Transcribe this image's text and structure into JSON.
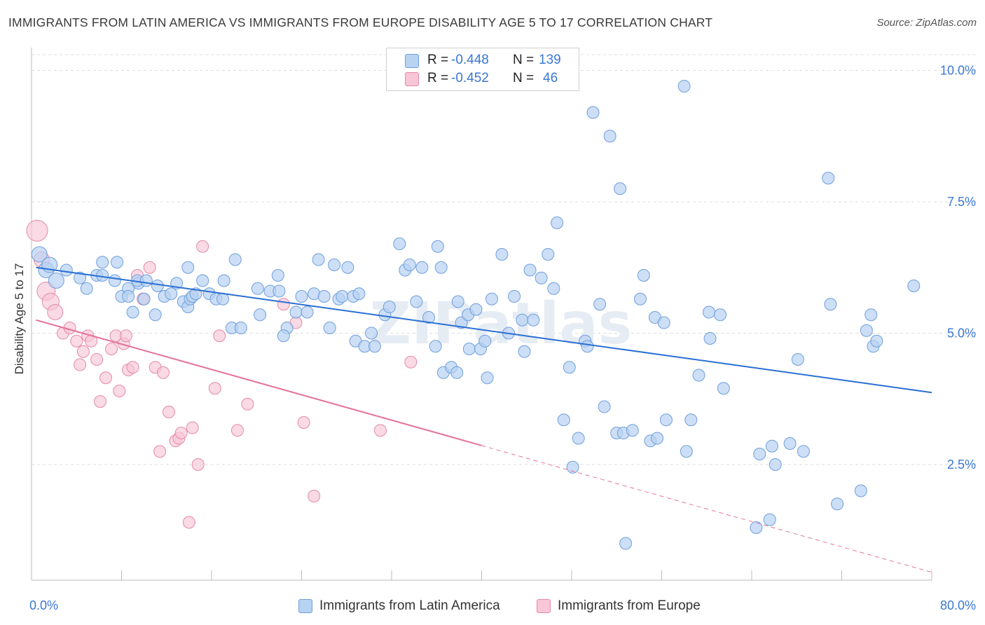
{
  "title": "IMMIGRANTS FROM LATIN AMERICA VS IMMIGRANTS FROM EUROPE DISABILITY AGE 5 TO 17 CORRELATION CHART",
  "source": "Source: ZipAtlas.com",
  "watermark": "ZIPatlas",
  "colors": {
    "blue_fill": "#b8d2f2",
    "blue_stroke": "#6e9fdc",
    "blue_line": "#2a6fd4",
    "pink_fill": "#f8c6d6",
    "pink_stroke": "#e48aa8",
    "pink_line": "#e4739b",
    "grid": "#dcdcdc",
    "tick_label": "#3a78d4"
  },
  "stats": {
    "rows": [
      {
        "r_label": "R =",
        "r_value": "-0.448",
        "n_label": "N =",
        "n_value": "139"
      },
      {
        "r_label": "R =",
        "r_value": "-0.452",
        "n_label": "N =",
        "n_value": "46"
      }
    ]
  },
  "legend": {
    "items": [
      {
        "label": "Immigrants from Latin America"
      },
      {
        "label": "Immigrants from Europe"
      }
    ]
  },
  "chart_data": {
    "type": "scatter",
    "title": "IMMIGRANTS FROM LATIN AMERICA VS IMMIGRANTS FROM EUROPE DISABILITY AGE 5 TO 17 CORRELATION CHART",
    "xlabel": "",
    "ylabel": "Disability Age 5 to 17",
    "xlim": [
      0,
      80
    ],
    "ylim": [
      0.3,
      10.3
    ],
    "x_tick_labels": [
      "0.0%",
      "80.0%"
    ],
    "y_ticks": [
      2.5,
      5.0,
      7.5,
      10.0
    ],
    "y_tick_labels": [
      "2.5%",
      "5.0%",
      "7.5%",
      "10.0%"
    ],
    "grid": "horizontal dashed",
    "legend_position": "bottom-center",
    "series": [
      {
        "name": "Immigrants from Latin America",
        "trend": {
          "x": [
            0.4,
            80.0
          ],
          "y": [
            6.25,
            3.87
          ],
          "dashed_from": null
        },
        "points": [
          [
            0.7,
            6.5
          ],
          [
            1.3,
            6.2
          ],
          [
            1.6,
            6.3
          ],
          [
            2.2,
            6.0
          ],
          [
            3.1,
            6.2
          ],
          [
            4.3,
            6.05
          ],
          [
            4.9,
            5.85
          ],
          [
            6.3,
            6.35
          ],
          [
            5.8,
            6.1
          ],
          [
            7.6,
            6.35
          ],
          [
            6.3,
            6.1
          ],
          [
            7.4,
            6.0
          ],
          [
            8.0,
            5.7
          ],
          [
            8.6,
            5.85
          ],
          [
            9.5,
            5.95
          ],
          [
            9.4,
            6.0
          ],
          [
            9.0,
            5.4
          ],
          [
            10.2,
            6.0
          ],
          [
            11.2,
            5.9
          ],
          [
            8.6,
            5.7
          ],
          [
            10.0,
            5.65
          ],
          [
            11.0,
            5.35
          ],
          [
            11.8,
            5.7
          ],
          [
            12.4,
            5.75
          ],
          [
            12.9,
            5.95
          ],
          [
            13.5,
            5.6
          ],
          [
            13.9,
            5.5
          ],
          [
            14.1,
            5.65
          ],
          [
            14.3,
            5.7
          ],
          [
            13.9,
            6.25
          ],
          [
            14.6,
            5.75
          ],
          [
            15.2,
            6.0
          ],
          [
            15.8,
            5.75
          ],
          [
            16.4,
            5.65
          ],
          [
            17.0,
            5.65
          ],
          [
            17.1,
            6.0
          ],
          [
            17.8,
            5.1
          ],
          [
            18.6,
            5.1
          ],
          [
            18.1,
            6.4
          ],
          [
            20.1,
            5.85
          ],
          [
            20.3,
            5.35
          ],
          [
            21.2,
            5.8
          ],
          [
            21.9,
            6.1
          ],
          [
            22.0,
            5.8
          ],
          [
            22.7,
            5.1
          ],
          [
            22.4,
            4.95
          ],
          [
            23.5,
            5.4
          ],
          [
            24.0,
            5.7
          ],
          [
            24.5,
            5.4
          ],
          [
            25.1,
            5.75
          ],
          [
            25.5,
            6.4
          ],
          [
            26.0,
            5.7
          ],
          [
            26.5,
            5.1
          ],
          [
            26.9,
            6.3
          ],
          [
            27.3,
            5.65
          ],
          [
            27.6,
            5.7
          ],
          [
            28.1,
            6.25
          ],
          [
            28.8,
            4.85
          ],
          [
            28.6,
            5.7
          ],
          [
            29.1,
            5.75
          ],
          [
            29.6,
            4.75
          ],
          [
            30.2,
            5.0
          ],
          [
            30.5,
            4.75
          ],
          [
            31.4,
            5.35
          ],
          [
            31.8,
            5.5
          ],
          [
            32.7,
            6.7
          ],
          [
            33.2,
            6.2
          ],
          [
            33.6,
            6.3
          ],
          [
            34.2,
            5.6
          ],
          [
            34.7,
            6.25
          ],
          [
            35.3,
            5.3
          ],
          [
            36.1,
            6.65
          ],
          [
            35.9,
            4.75
          ],
          [
            36.4,
            6.25
          ],
          [
            36.6,
            4.25
          ],
          [
            37.3,
            4.35
          ],
          [
            37.8,
            4.25
          ],
          [
            37.9,
            5.6
          ],
          [
            38.2,
            5.2
          ],
          [
            38.8,
            5.35
          ],
          [
            38.9,
            4.7
          ],
          [
            39.5,
            5.45
          ],
          [
            39.9,
            4.7
          ],
          [
            40.3,
            4.85
          ],
          [
            40.5,
            4.15
          ],
          [
            40.9,
            5.65
          ],
          [
            41.8,
            6.5
          ],
          [
            42.4,
            5.0
          ],
          [
            42.9,
            5.7
          ],
          [
            43.6,
            5.25
          ],
          [
            43.8,
            4.65
          ],
          [
            44.3,
            6.2
          ],
          [
            44.6,
            5.25
          ],
          [
            45.3,
            6.05
          ],
          [
            45.9,
            6.5
          ],
          [
            46.4,
            5.85
          ],
          [
            46.7,
            7.1
          ],
          [
            47.3,
            3.35
          ],
          [
            47.8,
            4.35
          ],
          [
            48.1,
            2.45
          ],
          [
            48.6,
            3.0
          ],
          [
            49.2,
            4.85
          ],
          [
            49.4,
            4.75
          ],
          [
            49.9,
            9.2
          ],
          [
            50.5,
            5.55
          ],
          [
            50.9,
            3.6
          ],
          [
            51.4,
            8.75
          ],
          [
            52.0,
            3.1
          ],
          [
            52.3,
            7.75
          ],
          [
            52.6,
            3.1
          ],
          [
            52.8,
            1.0
          ],
          [
            53.4,
            3.15
          ],
          [
            54.1,
            5.65
          ],
          [
            54.4,
            6.1
          ],
          [
            55.0,
            2.95
          ],
          [
            55.4,
            5.3
          ],
          [
            55.6,
            3.0
          ],
          [
            56.2,
            5.2
          ],
          [
            56.4,
            3.35
          ],
          [
            58.0,
            9.7
          ],
          [
            58.2,
            2.75
          ],
          [
            58.6,
            3.35
          ],
          [
            59.3,
            4.2
          ],
          [
            60.2,
            5.4
          ],
          [
            60.3,
            4.9
          ],
          [
            61.2,
            5.35
          ],
          [
            61.5,
            3.95
          ],
          [
            64.4,
            1.3
          ],
          [
            64.7,
            2.7
          ],
          [
            65.6,
            1.45
          ],
          [
            65.8,
            2.85
          ],
          [
            66.1,
            2.5
          ],
          [
            67.4,
            2.9
          ],
          [
            68.1,
            4.5
          ],
          [
            68.6,
            2.75
          ],
          [
            70.8,
            7.95
          ],
          [
            71.0,
            5.55
          ],
          [
            71.6,
            1.75
          ],
          [
            73.7,
            2.0
          ],
          [
            74.2,
            5.05
          ],
          [
            74.6,
            5.35
          ],
          [
            74.8,
            4.75
          ],
          [
            75.1,
            4.85
          ],
          [
            78.4,
            5.9
          ]
        ]
      },
      {
        "name": "Immigrants from Europe",
        "trend": {
          "x": [
            0.4,
            80.0
          ],
          "y": [
            5.25,
            0.45
          ],
          "dashed_from": 40.0
        },
        "points": [
          [
            0.5,
            6.95
          ],
          [
            0.9,
            6.4
          ],
          [
            1.3,
            5.8
          ],
          [
            1.7,
            5.6
          ],
          [
            2.1,
            5.4
          ],
          [
            2.8,
            5.0
          ],
          [
            3.4,
            5.1
          ],
          [
            4.0,
            4.85
          ],
          [
            4.3,
            4.4
          ],
          [
            4.6,
            4.65
          ],
          [
            5.0,
            4.95
          ],
          [
            5.3,
            4.85
          ],
          [
            5.8,
            4.5
          ],
          [
            6.1,
            3.7
          ],
          [
            6.6,
            4.15
          ],
          [
            7.1,
            4.7
          ],
          [
            7.5,
            4.95
          ],
          [
            7.8,
            3.9
          ],
          [
            8.2,
            4.8
          ],
          [
            8.4,
            4.95
          ],
          [
            8.6,
            4.3
          ],
          [
            9.0,
            4.35
          ],
          [
            9.4,
            6.1
          ],
          [
            9.9,
            5.65
          ],
          [
            10.5,
            6.25
          ],
          [
            11.0,
            4.35
          ],
          [
            11.4,
            2.75
          ],
          [
            11.7,
            4.25
          ],
          [
            12.2,
            3.5
          ],
          [
            12.8,
            2.95
          ],
          [
            13.1,
            3.0
          ],
          [
            13.3,
            3.1
          ],
          [
            14.0,
            1.4
          ],
          [
            14.3,
            3.2
          ],
          [
            14.8,
            2.5
          ],
          [
            15.2,
            6.65
          ],
          [
            16.3,
            3.95
          ],
          [
            16.7,
            4.95
          ],
          [
            18.3,
            3.15
          ],
          [
            19.2,
            3.65
          ],
          [
            22.4,
            5.55
          ],
          [
            23.5,
            5.2
          ],
          [
            24.2,
            3.3
          ],
          [
            25.1,
            1.9
          ],
          [
            31.0,
            3.15
          ],
          [
            33.7,
            4.45
          ]
        ]
      }
    ]
  }
}
